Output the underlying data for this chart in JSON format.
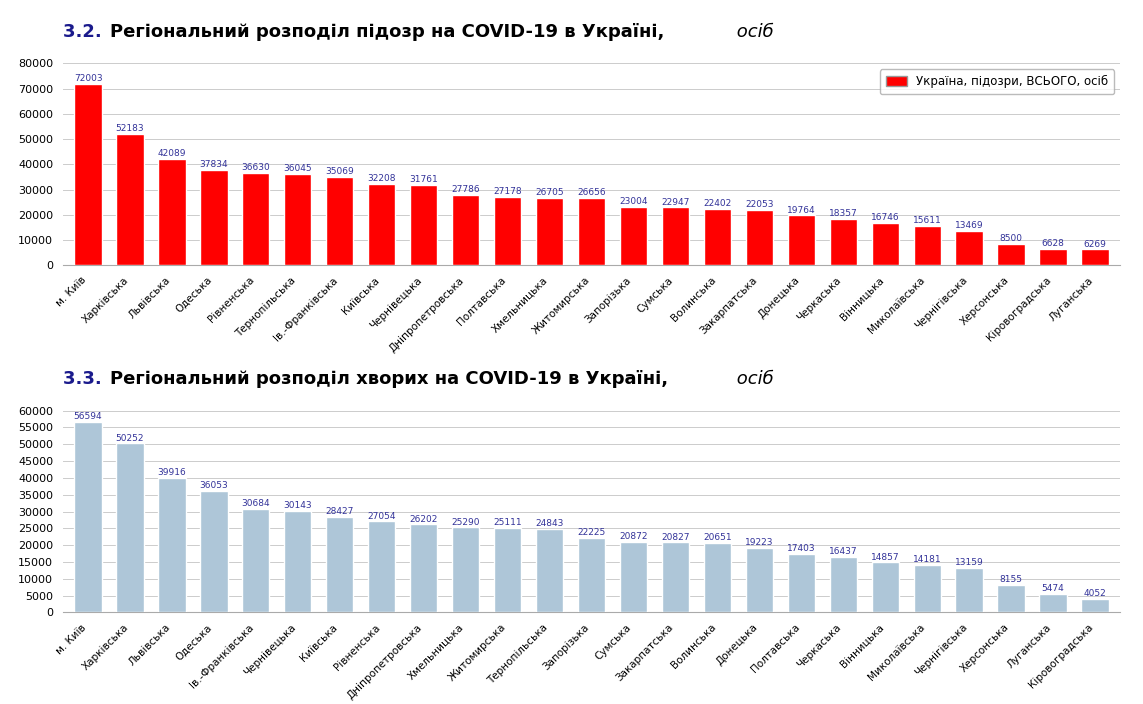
{
  "chart1": {
    "title_prefix": "3.2.  ",
    "title_main": "Регіональний розподіл підозр на COVID-19 в Україні,",
    "title_italic": " осіб",
    "legend_label": "Україна, підозри, ВСЬОГО, осіб",
    "bar_color": "#FF0000",
    "bar_edge_color": "#ffffff",
    "categories": [
      "м. Київ",
      "Харківська",
      "Львівська",
      "Одеська",
      "Рівненська",
      "Тернопільська",
      "Ів.-Франківська",
      "Київська",
      "Чернівецька",
      "Дніпропетровська",
      "Полтавська",
      "Хмельницька",
      "Житомирська",
      "Запорізька",
      "Сумська",
      "Волинська",
      "Закарпатська",
      "Донецька",
      "Черкаська",
      "Вінницька",
      "Миколаївська",
      "Чернігівська",
      "Херсонська",
      "Кіровоградська",
      "Луганська"
    ],
    "values": [
      72003,
      52183,
      42089,
      37834,
      36630,
      36045,
      35069,
      32208,
      31761,
      27786,
      27178,
      26705,
      26656,
      23004,
      22947,
      22402,
      22053,
      19764,
      18357,
      16746,
      15611,
      13469,
      8500,
      6628,
      6269
    ],
    "ylim": [
      0,
      80000
    ],
    "yticks": [
      0,
      10000,
      20000,
      30000,
      40000,
      50000,
      60000,
      70000,
      80000
    ]
  },
  "chart2": {
    "title_prefix": "3.3.  ",
    "title_main": "Регіональний розподіл хворих на COVID-19 в Україні,",
    "title_italic": " осіб",
    "bar_color": "#aec6d8",
    "bar_edge_color": "#ffffff",
    "categories": [
      "м. Київ",
      "Харківська",
      "Львівська",
      "Одеська",
      "Ів.-Франківська",
      "Чернівецька",
      "Київська",
      "Рівненська",
      "Дніпропетровська",
      "Хмельницька",
      "Житомирська",
      "Тернопільська",
      "Запорізька",
      "Сумська",
      "Закарпатська",
      "Волинська",
      "Донецька",
      "Полтавська",
      "Черкаська",
      "Вінницька",
      "Миколаївська",
      "Чернігівська",
      "Херсонська",
      "Луганська",
      "Кіровоградська"
    ],
    "values": [
      56594,
      50252,
      39916,
      36053,
      30684,
      30143,
      28427,
      27054,
      26202,
      25290,
      25111,
      24843,
      22225,
      20872,
      20827,
      20651,
      19223,
      17403,
      16437,
      14857,
      14181,
      13159,
      8155,
      5474,
      4052
    ],
    "ylim": [
      0,
      60000
    ],
    "yticks": [
      0,
      5000,
      10000,
      15000,
      20000,
      25000,
      30000,
      35000,
      40000,
      45000,
      50000,
      55000,
      60000
    ]
  },
  "background_color": "#ffffff",
  "label_fontsize": 7.5,
  "tick_fontsize": 8,
  "title_fontsize": 13,
  "value_fontsize": 6.5,
  "grid_color": "#cccccc",
  "value_color": "#333399"
}
